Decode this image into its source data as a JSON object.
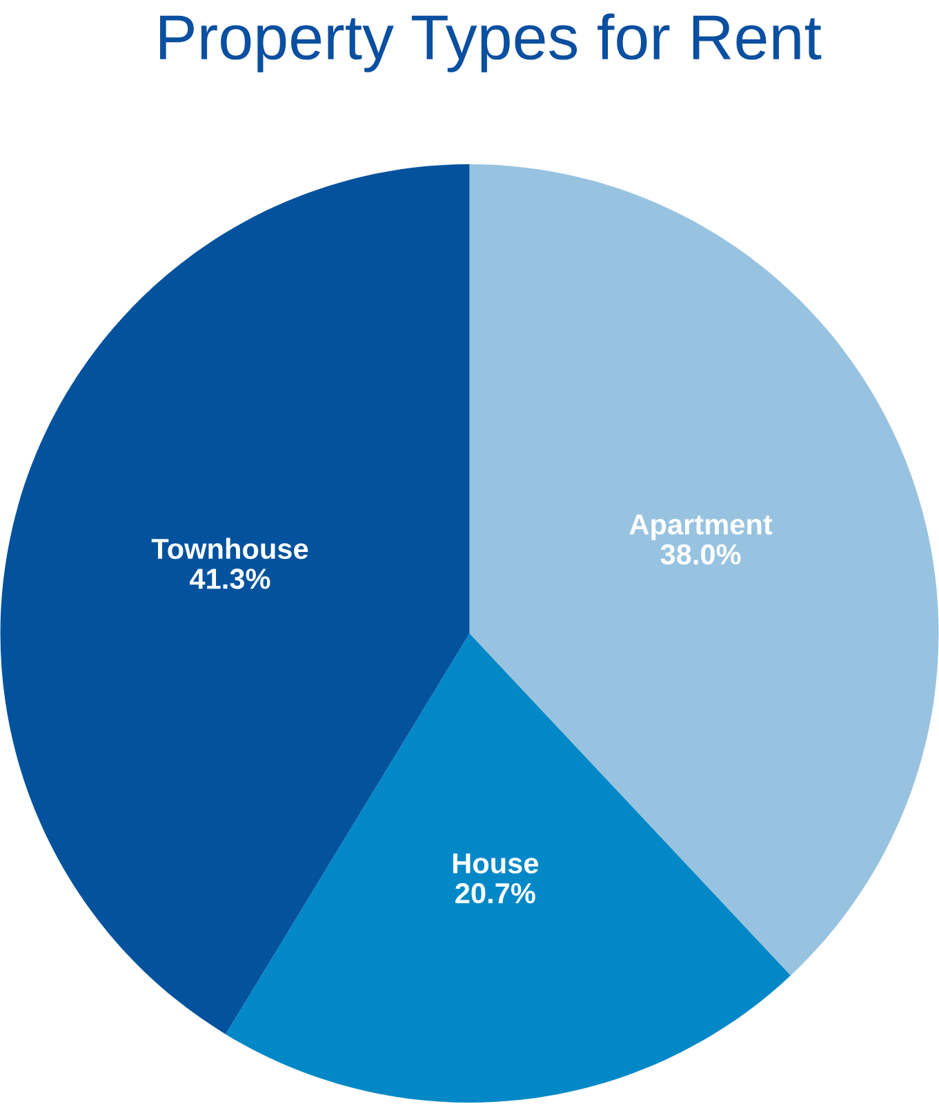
{
  "chart_data": {
    "type": "pie",
    "title": "Property Types for Rent",
    "categories": [
      "Apartment",
      "House",
      "Townhouse"
    ],
    "values": [
      38.0,
      20.7,
      41.3
    ],
    "value_labels": [
      "38.0%",
      "20.7%",
      "41.3%"
    ],
    "colors": [
      "#98c3e0",
      "#0288c7",
      "#02529e"
    ],
    "legend": false
  }
}
